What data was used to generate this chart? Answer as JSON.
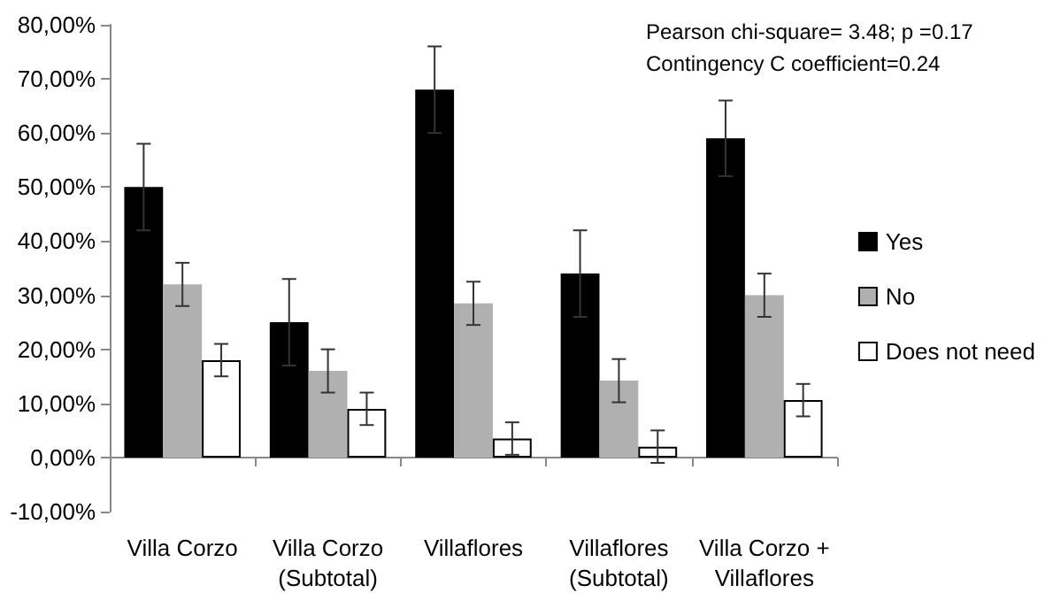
{
  "chart_data": {
    "type": "bar",
    "categories": [
      "Villa Corzo",
      "Villa Corzo\n(Subtotal)",
      "Villaflores",
      "Villaflores\n(Subtotal)",
      "Villa Corzo +\nVillaflores"
    ],
    "series": [
      {
        "name": "Yes",
        "color": "#000000",
        "values": [
          50,
          25,
          68,
          34,
          59
        ],
        "errors": [
          8,
          8,
          8,
          8,
          7
        ]
      },
      {
        "name": "No",
        "color": "#b0b0b0",
        "values": [
          32,
          16,
          28.5,
          14.2,
          30
        ],
        "errors": [
          4,
          4,
          4,
          4,
          4
        ]
      },
      {
        "name": "Does not need",
        "color": "#ffffff",
        "values": [
          18,
          9,
          3.5,
          2,
          10.6
        ],
        "errors": [
          3,
          3,
          3,
          3,
          3
        ]
      }
    ],
    "ylim": [
      -10,
      80
    ],
    "yticks": [
      {
        "value": -10,
        "label": "-10,00%"
      },
      {
        "value": 0,
        "label": "0,00%"
      },
      {
        "value": 10,
        "label": "10,00%"
      },
      {
        "value": 20,
        "label": "20,00%"
      },
      {
        "value": 30,
        "label": "30,00%"
      },
      {
        "value": 40,
        "label": "40,00%"
      },
      {
        "value": 50,
        "label": "50,00%"
      },
      {
        "value": 60,
        "label": "60,00%"
      },
      {
        "value": 70,
        "label": "70,00%"
      },
      {
        "value": 80,
        "label": "80,00%"
      }
    ],
    "annotations": [
      "Pearson chi-square= 3.48; p =0.17",
      "Contingency C coefficient=0.24"
    ],
    "legend": "right"
  }
}
